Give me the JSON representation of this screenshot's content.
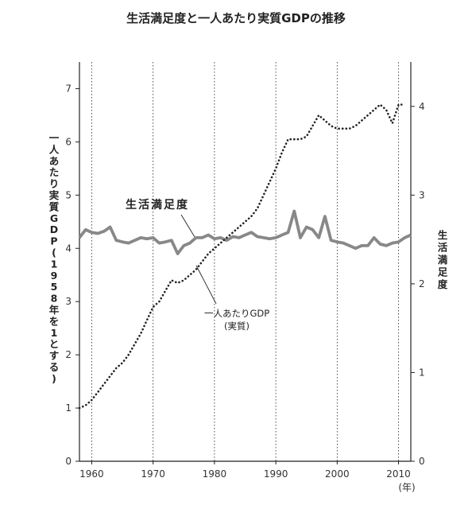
{
  "chart_data": {
    "type": "line",
    "title": "生活満足度と一人あたり実質GDPの推移",
    "xlabel": "(年)",
    "ylabel_left": "一人あたり実質GDP(1958年を1とする)",
    "ylabel_right": "生活満足度",
    "x_ticks": [
      "1960",
      "1970",
      "1980",
      "1990",
      "2000",
      "2010"
    ],
    "y_left_ticks": [
      "0",
      "1",
      "2",
      "3",
      "4",
      "5",
      "6",
      "7"
    ],
    "y_right_ticks": [
      "0",
      "1",
      "2",
      "3",
      "4"
    ],
    "xlim": [
      1958,
      2012
    ],
    "ylim_left": [
      0,
      7.5
    ],
    "ylim_right": [
      0,
      4.5
    ],
    "grid_years": [
      1960,
      1970,
      1980,
      1990,
      2000,
      2010
    ],
    "series": [
      {
        "name": "生活満足度",
        "axis": "left",
        "style": "solid-thick",
        "color": "#888888",
        "x": [
          1958,
          1959,
          1960,
          1961,
          1962,
          1963,
          1964,
          1965,
          1966,
          1967,
          1968,
          1969,
          1970,
          1971,
          1972,
          1973,
          1974,
          1975,
          1976,
          1977,
          1978,
          1979,
          1980,
          1981,
          1982,
          1983,
          1984,
          1985,
          1986,
          1987,
          1988,
          1989,
          1990,
          1991,
          1992,
          1993,
          1994,
          1995,
          1996,
          1997,
          1998,
          1999,
          2000,
          2001,
          2002,
          2003,
          2004,
          2005,
          2006,
          2007,
          2008,
          2009,
          2010,
          2011,
          2012
        ],
        "values": [
          4.2,
          4.35,
          4.3,
          4.28,
          4.32,
          4.4,
          4.15,
          4.12,
          4.1,
          4.15,
          4.2,
          4.18,
          4.2,
          4.1,
          4.12,
          4.15,
          3.9,
          4.05,
          4.1,
          4.2,
          4.2,
          4.25,
          4.18,
          4.2,
          4.15,
          4.22,
          4.2,
          4.25,
          4.3,
          4.22,
          4.2,
          4.18,
          4.2,
          4.25,
          4.3,
          4.7,
          4.2,
          4.4,
          4.35,
          4.2,
          4.6,
          4.15,
          4.12,
          4.1,
          4.05,
          4.0,
          4.05,
          4.05,
          4.2,
          4.08,
          4.05,
          4.1,
          4.12,
          4.2,
          4.25
        ]
      },
      {
        "name": "一人あたりGDP(実質)",
        "axis": "left",
        "style": "dotted",
        "color": "#222222",
        "x": [
          1958,
          1959,
          1960,
          1961,
          1962,
          1963,
          1964,
          1965,
          1966,
          1967,
          1968,
          1969,
          1970,
          1971,
          1972,
          1973,
          1974,
          1975,
          1976,
          1977,
          1978,
          1979,
          1980,
          1981,
          1982,
          1983,
          1984,
          1985,
          1986,
          1987,
          1988,
          1989,
          1990,
          1991,
          1992,
          1993,
          1994,
          1995,
          1996,
          1997,
          1998,
          1999,
          2000,
          2001,
          2002,
          2003,
          2004,
          2005,
          2006,
          2007,
          2008,
          2009,
          2010,
          2011
        ],
        "values": [
          1.0,
          1.05,
          1.15,
          1.3,
          1.45,
          1.6,
          1.75,
          1.85,
          2.0,
          2.2,
          2.4,
          2.65,
          2.9,
          3.0,
          3.2,
          3.4,
          3.35,
          3.4,
          3.5,
          3.6,
          3.75,
          3.9,
          4.0,
          4.1,
          4.2,
          4.3,
          4.4,
          4.5,
          4.6,
          4.75,
          5.0,
          5.25,
          5.5,
          5.8,
          6.05,
          6.05,
          6.05,
          6.1,
          6.3,
          6.5,
          6.4,
          6.3,
          6.25,
          6.25,
          6.25,
          6.3,
          6.4,
          6.5,
          6.6,
          6.7,
          6.6,
          6.35,
          6.7,
          6.7
        ]
      }
    ],
    "annotations": {
      "satisfaction_label": "生活満足度",
      "gdp_label_line1": "一人あたりGDP",
      "gdp_label_line2": "(実質)"
    },
    "grid": true,
    "legend": "none"
  }
}
